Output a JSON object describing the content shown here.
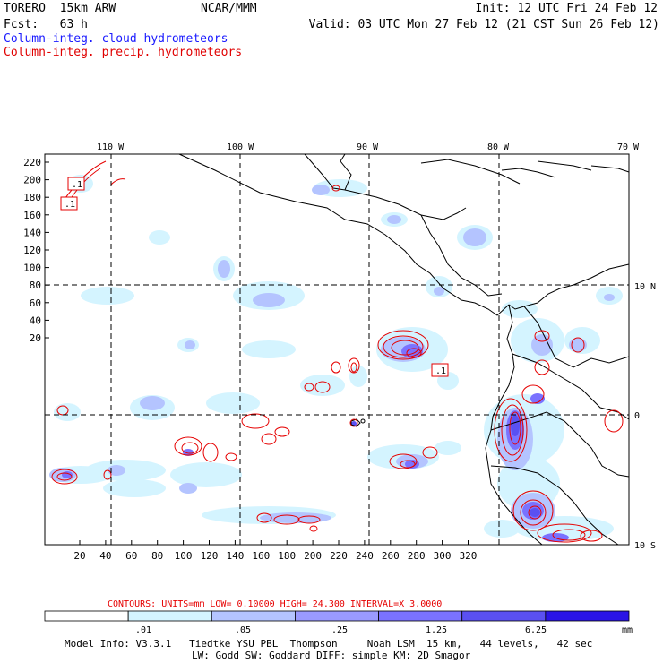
{
  "header": {
    "model": "TORERO  15km ARW",
    "org": "NCAR/MMM",
    "init": "Init: 12 UTC Fri 24 Feb 12",
    "fcst": "Fcst:   63 h",
    "valid": "Valid: 03 UTC Mon 27 Feb 12 (21 CST Sun 26 Feb 12)",
    "field1": "Column-integ. cloud hydrometeors",
    "field2": "Column-integ. precip. hydrometeors"
  },
  "map": {
    "lon_labels": [
      "110 W",
      "100 W",
      "90 W",
      "80 W",
      "70 W"
    ],
    "lat_labels": [
      "10 N",
      "0",
      "10 S"
    ],
    "x_ticks": [
      "20",
      "40",
      "60",
      "80",
      "100",
      "120",
      "140",
      "160",
      "180",
      "200",
      "220",
      "240",
      "260",
      "280",
      "300",
      "320"
    ],
    "y_ticks": [
      "220",
      "200",
      "180",
      "160",
      "140",
      "120",
      "100",
      "80",
      "60",
      "40",
      "20"
    ],
    "contour_labels": [
      ".1",
      ".1",
      ".1"
    ]
  },
  "contours_info": "CONTOURS:  UNITS=mm  LOW= 0.10000      HIGH=  24.300      INTERVAL=X  3.0000",
  "colorbar": {
    "labels": [
      ".01",
      ".05",
      ".25",
      "1.25",
      "6.25"
    ],
    "unit": "mm",
    "colors": [
      "#ffffff",
      "#d4f4ff",
      "#b4c4ff",
      "#9a9aff",
      "#7a72ff",
      "#5a50f2",
      "#2a14e6"
    ]
  },
  "footer": {
    "line1": "Model Info: V3.3.1   Tiedtke YSU PBL  Thompson     Noah LSM  15 km,   44 levels,   42 sec",
    "line2": "LW: Godd SW: Goddard DIFF: simple KM: 2D Smagor"
  }
}
